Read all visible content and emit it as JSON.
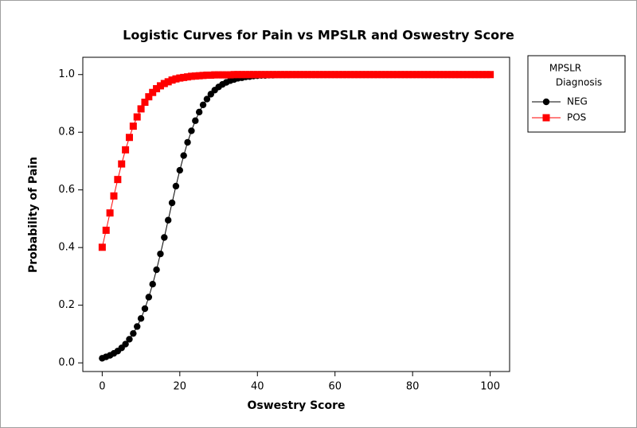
{
  "chart_data": {
    "type": "line",
    "title": "Logistic Curves for Pain vs MPSLR and Oswestry Score",
    "xlabel": "Oswestry Score",
    "ylabel": "Probability of Pain",
    "legend_title": [
      "MPSLR",
      "Diagnosis"
    ],
    "legend": "right",
    "x": [
      0,
      1,
      2,
      3,
      4,
      5,
      6,
      7,
      8,
      9,
      10,
      11,
      12,
      13,
      14,
      15,
      16,
      17,
      18,
      19,
      20,
      21,
      22,
      23,
      24,
      25,
      26,
      27,
      28,
      29,
      30,
      31,
      32,
      33,
      34,
      35,
      36,
      37,
      38,
      39,
      40,
      41,
      42,
      43,
      44,
      45,
      46,
      47,
      48,
      49,
      50,
      51,
      52,
      53,
      54,
      55,
      56,
      57,
      58,
      59,
      60,
      61,
      62,
      63,
      64,
      65,
      66,
      67,
      68,
      69,
      70,
      71,
      72,
      73,
      74,
      75,
      76,
      77,
      78,
      79,
      80,
      81,
      82,
      83,
      84,
      85,
      86,
      87,
      88,
      89,
      90,
      91,
      92,
      93,
      94,
      95,
      96,
      97,
      98,
      99,
      100
    ],
    "series": [
      {
        "name": "NEG",
        "color": "#000000",
        "marker": "circle",
        "values": [
          0.016,
          0.021,
          0.026,
          0.033,
          0.041,
          0.052,
          0.065,
          0.082,
          0.102,
          0.126,
          0.154,
          0.188,
          0.228,
          0.273,
          0.323,
          0.378,
          0.435,
          0.495,
          0.555,
          0.613,
          0.668,
          0.719,
          0.765,
          0.805,
          0.84,
          0.87,
          0.895,
          0.915,
          0.932,
          0.946,
          0.957,
          0.966,
          0.973,
          0.979,
          0.983,
          0.987,
          0.989,
          0.992,
          0.993,
          0.995,
          0.996,
          0.997,
          0.997,
          0.998,
          0.998,
          0.999,
          0.999,
          0.999,
          0.999,
          1,
          1,
          1,
          1,
          1,
          1,
          1,
          1,
          1,
          1,
          1,
          1,
          1,
          1,
          1,
          1,
          1,
          1,
          1,
          1,
          1,
          1,
          1,
          1,
          1,
          1,
          1,
          1,
          1,
          1,
          1,
          1,
          1,
          1,
          1,
          1,
          1,
          1,
          1,
          1,
          1,
          1,
          1,
          1,
          1,
          1,
          1,
          1,
          1,
          1,
          1,
          1
        ]
      },
      {
        "name": "POS",
        "color": "#ff0000",
        "marker": "square",
        "values": [
          0.401,
          0.46,
          0.52,
          0.579,
          0.636,
          0.69,
          0.739,
          0.782,
          0.821,
          0.853,
          0.881,
          0.904,
          0.923,
          0.938,
          0.951,
          0.961,
          0.969,
          0.975,
          0.981,
          0.985,
          0.988,
          0.99,
          0.992,
          0.994,
          0.995,
          0.996,
          0.997,
          0.998,
          0.998,
          0.999,
          0.999,
          0.999,
          0.999,
          0.999,
          1,
          1,
          1,
          1,
          1,
          1,
          1,
          1,
          1,
          1,
          1,
          1,
          1,
          1,
          1,
          1,
          1,
          1,
          1,
          1,
          1,
          1,
          1,
          1,
          1,
          1,
          1,
          1,
          1,
          1,
          1,
          1,
          1,
          1,
          1,
          1,
          1,
          1,
          1,
          1,
          1,
          1,
          1,
          1,
          1,
          1,
          1,
          1,
          1,
          1,
          1,
          1,
          1,
          1,
          1,
          1,
          1,
          1,
          1,
          1,
          1,
          1,
          1,
          1,
          1,
          1,
          1
        ]
      }
    ],
    "xlim": [
      -5,
      105
    ],
    "xticks": [
      0,
      20,
      40,
      60,
      80,
      100
    ],
    "ylim": [
      -0.03,
      1.06
    ],
    "yticks": [
      {
        "value": 0,
        "label": "0.0"
      },
      {
        "value": 0.2,
        "label": "0.2"
      },
      {
        "value": 0.4,
        "label": "0.4"
      },
      {
        "value": 0.6,
        "label": "0.6"
      },
      {
        "value": 0.8,
        "label": "0.8"
      },
      {
        "value": 1,
        "label": "1.0"
      }
    ],
    "grid": false
  }
}
